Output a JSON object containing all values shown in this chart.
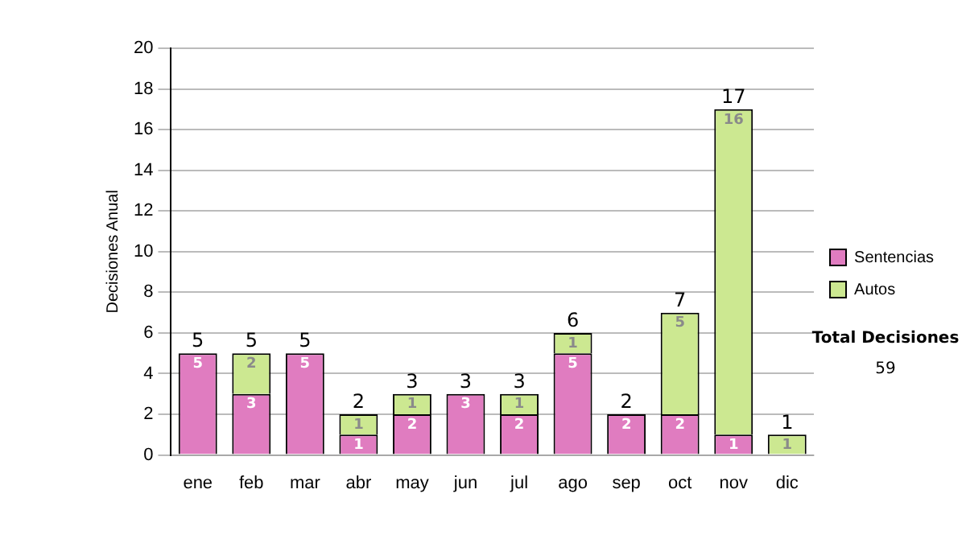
{
  "chart_data": {
    "type": "bar",
    "stacked": true,
    "ylabel": "Decisiones Anual",
    "categories": [
      "ene",
      "feb",
      "mar",
      "abr",
      "may",
      "jun",
      "jul",
      "ago",
      "sep",
      "oct",
      "nov",
      "dic"
    ],
    "series": [
      {
        "name": "Sentencias",
        "color": "#e07cc0",
        "values": [
          5,
          3,
          5,
          1,
          2,
          3,
          2,
          5,
          2,
          2,
          1,
          null
        ]
      },
      {
        "name": "Autos",
        "color": "#cce891",
        "values": [
          null,
          2,
          null,
          1,
          1,
          null,
          1,
          1,
          null,
          5,
          16,
          1
        ]
      }
    ],
    "totals": [
      "5",
      "5",
      "5",
      "2",
      "3",
      "3",
      "3",
      "6",
      "2",
      "7",
      "17",
      "1"
    ],
    "data_labels": true,
    "ylim": [
      0,
      20
    ],
    "yticks": [
      0,
      2,
      4,
      6,
      8,
      10,
      12,
      14,
      16,
      18,
      20
    ],
    "grid": "y",
    "legend": "right",
    "annotations": [
      "Total Decisiones",
      "59"
    ]
  }
}
